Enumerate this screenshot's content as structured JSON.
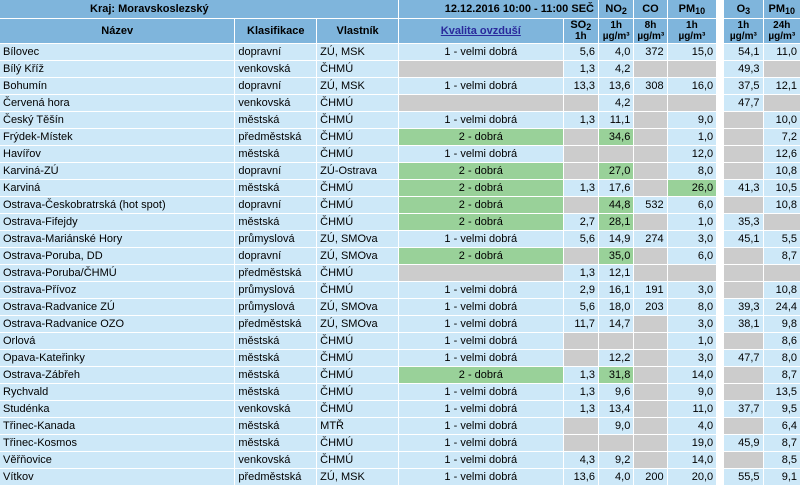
{
  "header": {
    "region": "Kraj: Moravskoslezský",
    "datetime": "12.12.2016 10:00 - 11:00 SEČ",
    "col_name": "Název",
    "col_class": "Klasifikace",
    "col_owner": "Vlastník",
    "col_quality": "Kvalita ovzduší",
    "so2": "SO",
    "so2_sub": "2",
    "no2": "NO",
    "no2_sub": "2",
    "co": "CO",
    "pm10": "PM",
    "pm10_sub": "10",
    "o3": "O",
    "o3_sub": "3",
    "pm10b": "PM",
    "pm10b_sub": "10",
    "u_1h": "1h",
    "u_8h": "8h",
    "u_24h": "24h",
    "u_ugm3": "µg/m³"
  },
  "rows": [
    {
      "name": "Bílovec",
      "class": "dopravní",
      "owner": "ZÚ, MSK",
      "quality": "1 - velmi dobrá",
      "qcolor": "row",
      "so2": "5,6",
      "no2": "4,0",
      "co": "372",
      "pm10": "15,0",
      "o3": "54,1",
      "pm24": "11,0"
    },
    {
      "name": "Bílý Kříž",
      "class": "venkovská",
      "owner": "ČHMÚ",
      "quality": "",
      "qcolor": "gray",
      "so2": "1,3",
      "no2": "4,2",
      "co": "",
      "pm10": "",
      "o3": "49,3",
      "pm24": ""
    },
    {
      "name": "Bohumín",
      "class": "dopravní",
      "owner": "ZÚ, MSK",
      "quality": "1 - velmi dobrá",
      "qcolor": "row",
      "so2": "13,3",
      "no2": "13,6",
      "co": "308",
      "pm10": "16,0",
      "o3": "37,5",
      "pm24": "12,1"
    },
    {
      "name": "Červená hora",
      "class": "venkovská",
      "owner": "ČHMÚ",
      "quality": "",
      "qcolor": "gray",
      "so2": "",
      "no2": "4,2",
      "co": "",
      "pm10": "",
      "o3": "47,7",
      "pm24": ""
    },
    {
      "name": "Český Těšín",
      "class": "městská",
      "owner": "ČHMÚ",
      "quality": "1 - velmi dobrá",
      "qcolor": "row",
      "so2": "1,3",
      "no2": "11,1",
      "co": "",
      "pm10": "9,0",
      "o3": "",
      "pm24": "10,0"
    },
    {
      "name": "Frýdek-Místek",
      "class": "předměstská",
      "owner": "ČHMÚ",
      "quality": "2 - dobrá",
      "qcolor": "green",
      "so2": "",
      "no2": "34,6",
      "no2c": "green",
      "co": "",
      "pm10": "1,0",
      "o3": "",
      "pm24": "7,2"
    },
    {
      "name": "Havířov",
      "class": "městská",
      "owner": "ČHMÚ",
      "quality": "1 - velmi dobrá",
      "qcolor": "row",
      "so2": "",
      "no2": "",
      "co": "",
      "pm10": "12,0",
      "o3": "",
      "pm24": "12,6"
    },
    {
      "name": "Karviná-ZÚ",
      "class": "dopravní",
      "owner": "ZÚ-Ostrava",
      "quality": "2 - dobrá",
      "qcolor": "green",
      "so2": "",
      "no2": "27,0",
      "no2c": "green",
      "co": "",
      "pm10": "8,0",
      "o3": "",
      "pm24": "10,8"
    },
    {
      "name": "Karviná",
      "class": "městská",
      "owner": "ČHMÚ",
      "quality": "2 - dobrá",
      "qcolor": "green",
      "so2": "1,3",
      "no2": "17,6",
      "co": "",
      "pm10": "26,0",
      "pm10c": "green",
      "o3": "41,3",
      "pm24": "10,5"
    },
    {
      "name": "Ostrava-Českobratrská (hot spot)",
      "class": "dopravní",
      "owner": "ČHMÚ",
      "quality": "2 - dobrá",
      "qcolor": "green",
      "so2": "",
      "no2": "44,8",
      "no2c": "green",
      "co": "532",
      "pm10": "6,0",
      "o3": "",
      "pm24": "10,8"
    },
    {
      "name": "Ostrava-Fifejdy",
      "class": "městská",
      "owner": "ČHMÚ",
      "quality": "2 - dobrá",
      "qcolor": "green",
      "so2": "2,7",
      "no2": "28,1",
      "no2c": "green",
      "co": "",
      "pm10": "1,0",
      "o3": "35,3",
      "pm24": ""
    },
    {
      "name": "Ostrava-Mariánské Hory",
      "class": "průmyslová",
      "owner": "ZÚ, SMOva",
      "quality": "1 - velmi dobrá",
      "qcolor": "row",
      "so2": "5,6",
      "no2": "14,9",
      "co": "274",
      "pm10": "3,0",
      "o3": "45,1",
      "pm24": "5,5"
    },
    {
      "name": "Ostrava-Poruba, DD",
      "class": "dopravní",
      "owner": "ZÚ, SMOva",
      "quality": "2 - dobrá",
      "qcolor": "green",
      "so2": "",
      "no2": "35,0",
      "no2c": "green",
      "co": "",
      "pm10": "6,0",
      "o3": "",
      "pm24": "8,7"
    },
    {
      "name": "Ostrava-Poruba/ČHMÚ",
      "class": "předměstská",
      "owner": "ČHMÚ",
      "quality": "",
      "qcolor": "gray",
      "so2": "1,3",
      "no2": "12,1",
      "co": "",
      "pm10": "",
      "o3": "",
      "pm24": ""
    },
    {
      "name": "Ostrava-Přívoz",
      "class": "průmyslová",
      "owner": "ČHMÚ",
      "quality": "1 - velmi dobrá",
      "qcolor": "row",
      "so2": "2,9",
      "no2": "16,1",
      "co": "191",
      "pm10": "3,0",
      "o3": "",
      "pm24": "10,8"
    },
    {
      "name": "Ostrava-Radvanice ZÚ",
      "class": "průmyslová",
      "owner": "ZÚ, SMOva",
      "quality": "1 - velmi dobrá",
      "qcolor": "row",
      "so2": "5,6",
      "no2": "18,0",
      "co": "203",
      "pm10": "8,0",
      "o3": "39,3",
      "pm24": "24,4"
    },
    {
      "name": "Ostrava-Radvanice OZO",
      "class": "předměstská",
      "owner": "ZÚ, SMOva",
      "quality": "1 - velmi dobrá",
      "qcolor": "row",
      "so2": "11,7",
      "no2": "14,7",
      "co": "",
      "pm10": "3,0",
      "o3": "38,1",
      "pm24": "9,8"
    },
    {
      "name": "Orlová",
      "class": "městská",
      "owner": "ČHMÚ",
      "quality": "1 - velmi dobrá",
      "qcolor": "row",
      "so2": "",
      "no2": "",
      "co": "",
      "pm10": "1,0",
      "o3": "",
      "pm24": "8,6"
    },
    {
      "name": "Opava-Kateřinky",
      "class": "městská",
      "owner": "ČHMÚ",
      "quality": "1 - velmi dobrá",
      "qcolor": "row",
      "so2": "",
      "no2": "12,2",
      "co": "",
      "pm10": "3,0",
      "o3": "47,7",
      "pm24": "8,0"
    },
    {
      "name": "Ostrava-Zábřeh",
      "class": "městská",
      "owner": "ČHMÚ",
      "quality": "2 - dobrá",
      "qcolor": "green",
      "so2": "1,3",
      "no2": "31,8",
      "no2c": "green",
      "co": "",
      "pm10": "14,0",
      "o3": "",
      "pm24": "8,7"
    },
    {
      "name": "Rychvald",
      "class": "městská",
      "owner": "ČHMÚ",
      "quality": "1 - velmi dobrá",
      "qcolor": "row",
      "so2": "1,3",
      "no2": "9,6",
      "co": "",
      "pm10": "9,0",
      "o3": "",
      "pm24": "13,5"
    },
    {
      "name": "Studénka",
      "class": "venkovská",
      "owner": "ČHMÚ",
      "quality": "1 - velmi dobrá",
      "qcolor": "row",
      "so2": "1,3",
      "no2": "13,4",
      "co": "",
      "pm10": "11,0",
      "o3": "37,7",
      "pm24": "9,5"
    },
    {
      "name": "Třinec-Kanada",
      "class": "městská",
      "owner": "MTŘ",
      "quality": "1 - velmi dobrá",
      "qcolor": "row",
      "so2": "",
      "no2": "9,0",
      "co": "",
      "pm10": "4,0",
      "o3": "",
      "pm24": "6,4"
    },
    {
      "name": "Třinec-Kosmos",
      "class": "městská",
      "owner": "ČHMÚ",
      "quality": "1 - velmi dobrá",
      "qcolor": "row",
      "so2": "",
      "no2": "",
      "co": "",
      "pm10": "19,0",
      "o3": "45,9",
      "pm24": "8,7"
    },
    {
      "name": "Věřňovice",
      "class": "venkovská",
      "owner": "ČHMÚ",
      "quality": "1 - velmi dobrá",
      "qcolor": "row",
      "so2": "4,3",
      "no2": "9,2",
      "co": "",
      "pm10": "14,0",
      "o3": "",
      "pm24": "8,5"
    },
    {
      "name": "Vítkov",
      "class": "předměstská",
      "owner": "ZÚ, MSK",
      "quality": "1 - velmi dobrá",
      "qcolor": "row",
      "so2": "13,6",
      "no2": "4,0",
      "co": "200",
      "pm10": "20,0",
      "o3": "55,5",
      "pm24": "9,1"
    }
  ]
}
